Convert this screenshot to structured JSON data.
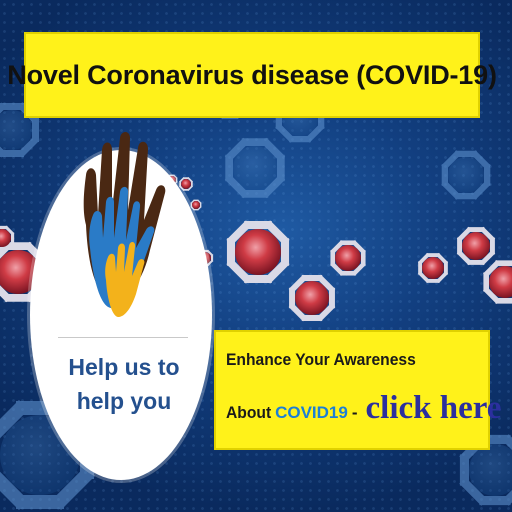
{
  "banner": {
    "title": "Novel Coronavirus disease (COVID-19)",
    "help_line1": "Help us to",
    "help_line2": "help you",
    "cta_line1": "Enhance Your Awareness",
    "cta_about": "About",
    "cta_covid": "COVID19",
    "cta_dash": "-",
    "cta_click": "click here"
  },
  "colors": {
    "background": "#123f80",
    "title_box": "#fff21a",
    "help_text": "#24508e",
    "covid_text": "#1b7fd6",
    "click_text": "#2b2f9e",
    "virus": "#c7323a"
  },
  "icons": [
    "virus-icon",
    "hands-icon"
  ]
}
